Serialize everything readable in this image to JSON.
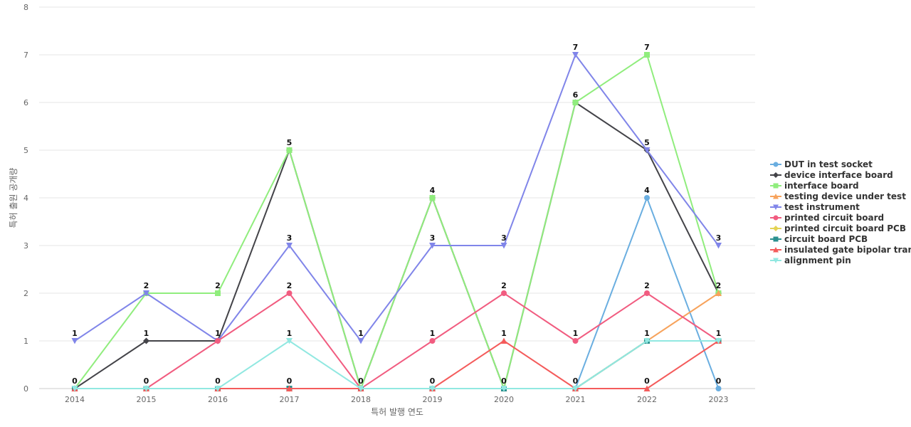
{
  "chart_data": {
    "type": "line",
    "xlabel": "특허 발행 연도",
    "ylabel": "특허 출원 공개량",
    "ylim": [
      0,
      8
    ],
    "yticks": [
      0,
      1,
      2,
      3,
      4,
      5,
      6,
      7,
      8
    ],
    "categories": [
      "2014",
      "2015",
      "2016",
      "2017",
      "2018",
      "2019",
      "2020",
      "2021",
      "2022",
      "2023"
    ],
    "grid": "horizontal",
    "legend_position": "right",
    "series": [
      {
        "name": "DUT in test socket",
        "color": "#6aaee0",
        "marker": "circle",
        "values": [
          0,
          0,
          0,
          0,
          0,
          0,
          0,
          0,
          4,
          0
        ]
      },
      {
        "name": "device interface board",
        "color": "#434348",
        "marker": "diamond",
        "values": [
          0,
          1,
          1,
          5,
          0,
          4,
          0,
          6,
          5,
          2
        ]
      },
      {
        "name": "interface board",
        "color": "#90ed7d",
        "marker": "square",
        "values": [
          0,
          2,
          2,
          5,
          0,
          4,
          0,
          6,
          7,
          2
        ]
      },
      {
        "name": "testing device under test",
        "color": "#f7a35c",
        "marker": "triangle",
        "values": [
          0,
          0,
          0,
          0,
          0,
          0,
          0,
          0,
          1,
          2
        ]
      },
      {
        "name": "test instrument",
        "color": "#8085e9",
        "marker": "triangle-down",
        "values": [
          1,
          2,
          1,
          3,
          1,
          3,
          3,
          7,
          5,
          3
        ]
      },
      {
        "name": "printed circuit board",
        "color": "#f15c80",
        "marker": "circle",
        "values": [
          0,
          0,
          1,
          2,
          0,
          1,
          2,
          1,
          2,
          1
        ]
      },
      {
        "name": "printed circuit board PCB",
        "color": "#e4d354",
        "marker": "diamond",
        "values": [
          0,
          0,
          0,
          0,
          0,
          0,
          0,
          0,
          1,
          1
        ]
      },
      {
        "name": "circuit board PCB",
        "color": "#2b908f",
        "marker": "square",
        "values": [
          0,
          0,
          0,
          0,
          0,
          0,
          0,
          0,
          1,
          1
        ]
      },
      {
        "name": "insulated gate bipolar tran...",
        "color": "#f45b5b",
        "marker": "triangle",
        "values": [
          0,
          0,
          0,
          0,
          0,
          0,
          1,
          0,
          0,
          1
        ]
      },
      {
        "name": "alignment pin",
        "color": "#91e8e1",
        "marker": "triangle-down",
        "values": [
          0,
          0,
          0,
          1,
          0,
          0,
          0,
          0,
          1,
          1
        ]
      }
    ],
    "data_labels": [
      1,
      0,
      2,
      1,
      0,
      2,
      1,
      0,
      5,
      3,
      2,
      1,
      0,
      1,
      4,
      3,
      1,
      0,
      3,
      2,
      1,
      0,
      7,
      6,
      1,
      0,
      7,
      5,
      4,
      2,
      1,
      0,
      3,
      2,
      1,
      0
    ]
  }
}
